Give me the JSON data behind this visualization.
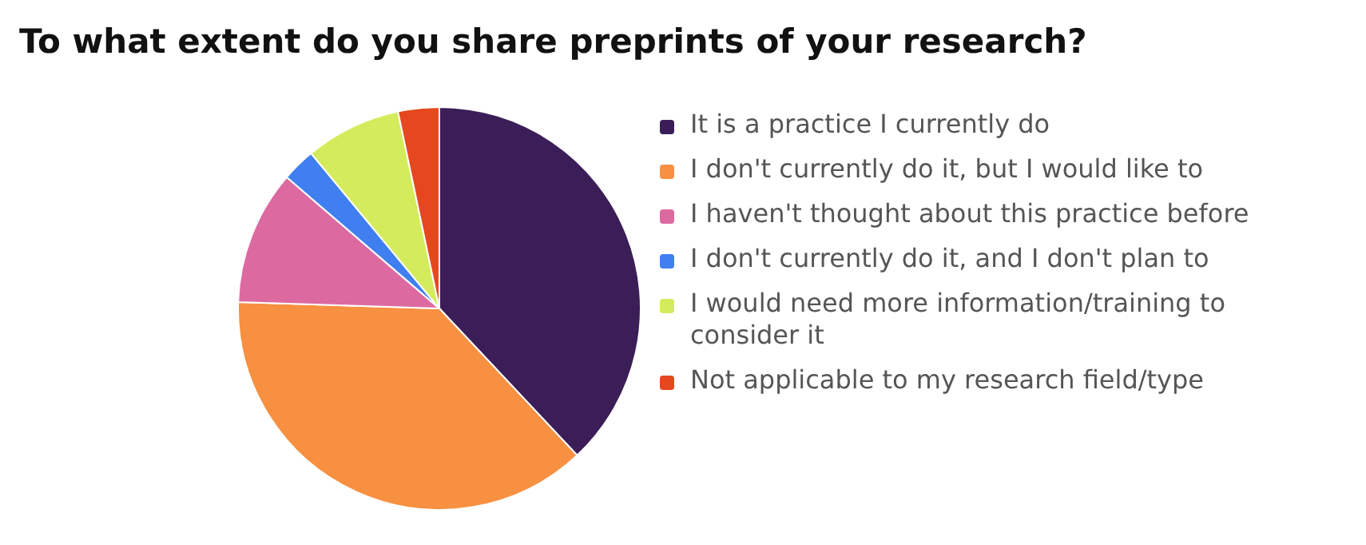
{
  "chart_data": {
    "type": "pie",
    "title": "To what extent do you share preprints of your research?",
    "categories": [
      "It is a practice I currently do",
      "I don't currently do it, but I would like to",
      "I haven't thought about this practice before",
      "I don't currently do it, and I don't plan to",
      "I would need more information/training to consider it",
      "Not applicable to my research field/type"
    ],
    "values": [
      38,
      37.5,
      10.8,
      2.7,
      7.7,
      3.3
    ],
    "colors": [
      "#3b1e57",
      "#f79040",
      "#dc6aa0",
      "#3f7ff0",
      "#d4ec5c",
      "#e5481e"
    ],
    "legend": "right"
  }
}
